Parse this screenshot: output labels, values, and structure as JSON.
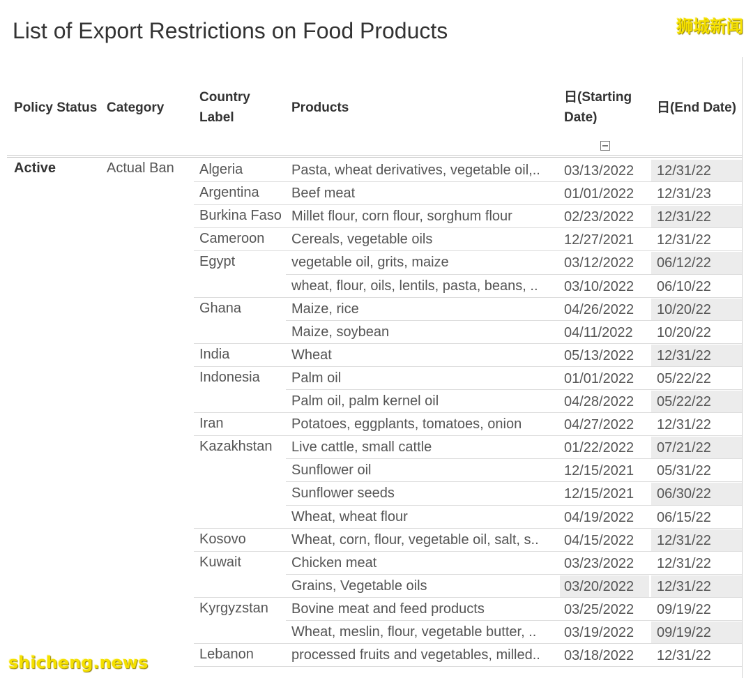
{
  "title": "List of Export Restrictions on Food Products",
  "watermarks": {
    "top_right": "狮城新闻",
    "bottom_left": "shicheng.news"
  },
  "columns": {
    "policy_status": "Policy Status",
    "category": "Category",
    "country_label": "Country Label",
    "products": "Products",
    "start_date": "日(Starting Date)",
    "end_date": "日(End Date)"
  },
  "group": {
    "policy_status": "Active",
    "category": "Actual Ban"
  },
  "colors": {
    "highlight": "#ececec",
    "watermark": "#f5e000",
    "rule": "#dddddd"
  },
  "rows": [
    {
      "country": "Algeria",
      "products": "Pasta, wheat derivatives, vegetable oil,..",
      "start": "03/13/2022",
      "end": "12/31/22",
      "end_shaded": true
    },
    {
      "country": "Argentina",
      "products": "Beef meat",
      "start": "01/01/2022",
      "end": "12/31/23"
    },
    {
      "country": "Burkina Faso",
      "products": "Millet flour, corn flour, sorghum flour",
      "start": "02/23/2022",
      "end": "12/31/22",
      "end_shaded": true
    },
    {
      "country": "Cameroon",
      "products": "Cereals, vegetable oils",
      "start": "12/27/2021",
      "end": "12/31/22"
    },
    {
      "country": "Egypt",
      "products": "vegetable oil, grits, maize",
      "start": "03/12/2022",
      "end": "06/12/22",
      "end_shaded": true
    },
    {
      "country": "",
      "products": "wheat, flour, oils, lentils, pasta, beans, ..",
      "start": "03/10/2022",
      "end": "06/10/22"
    },
    {
      "country": "Ghana",
      "products": "Maize, rice",
      "start": "04/26/2022",
      "end": "10/20/22",
      "end_shaded": true
    },
    {
      "country": "",
      "products": "Maize, soybean",
      "start": "04/11/2022",
      "end": "10/20/22"
    },
    {
      "country": "India",
      "products": "Wheat",
      "start": "05/13/2022",
      "end": "12/31/22",
      "end_shaded": true
    },
    {
      "country": "Indonesia",
      "products": "Palm oil",
      "start": "01/01/2022",
      "end": "05/22/22"
    },
    {
      "country": "",
      "products": "Palm oil, palm kernel oil",
      "start": "04/28/2022",
      "end": "05/22/22",
      "end_shaded": true
    },
    {
      "country": "Iran",
      "products": "Potatoes, eggplants, tomatoes, onion",
      "start": "04/27/2022",
      "end": "12/31/22"
    },
    {
      "country": "Kazakhstan",
      "products": "Live cattle, small cattle",
      "start": "01/22/2022",
      "end": "07/21/22",
      "end_shaded": true
    },
    {
      "country": "",
      "products": "Sunflower oil",
      "start": "12/15/2021",
      "end": "05/31/22"
    },
    {
      "country": "",
      "products": "Sunflower seeds",
      "start": "12/15/2021",
      "end": "06/30/22",
      "end_shaded": true
    },
    {
      "country": "",
      "products": "Wheat, wheat flour",
      "start": "04/19/2022",
      "end": "06/15/22"
    },
    {
      "country": "Kosovo",
      "products": "Wheat, corn, flour, vegetable oil, salt, s..",
      "start": "04/15/2022",
      "end": "12/31/22",
      "end_shaded": true
    },
    {
      "country": "Kuwait",
      "products": "Chicken meat",
      "start": "03/23/2022",
      "end": "12/31/22"
    },
    {
      "country": "",
      "products": "Grains, Vegetable oils",
      "start": "03/20/2022",
      "end": "12/31/22",
      "start_shaded": true,
      "end_shaded": true
    },
    {
      "country": "Kyrgyzstan",
      "products": "Bovine meat and feed products",
      "start": "03/25/2022",
      "end": "09/19/22"
    },
    {
      "country": "",
      "products": "Wheat, meslin, flour, vegetable butter, ..",
      "start": "03/19/2022",
      "end": "09/19/22",
      "end_shaded": true
    },
    {
      "country": "Lebanon",
      "products": "processed fruits and vegetables, milled..",
      "start": "03/18/2022",
      "end": "12/31/22"
    }
  ]
}
